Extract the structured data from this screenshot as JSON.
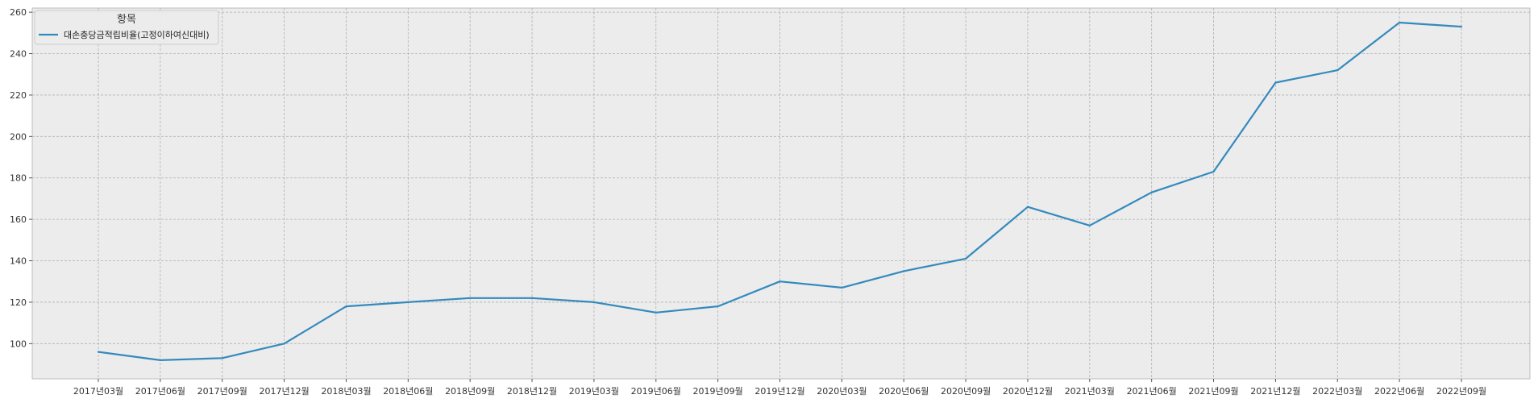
{
  "chart_data": {
    "type": "line",
    "title": "",
    "xlabel": "",
    "ylabel": "",
    "x": [
      "2017년03월",
      "2017년06월",
      "2017년09월",
      "2017년12월",
      "2018년03월",
      "2018년06월",
      "2018년09월",
      "2018년12월",
      "2019년03월",
      "2019년06월",
      "2019년09월",
      "2019년12월",
      "2020년03월",
      "2020년06월",
      "2020년09월",
      "2020년12월",
      "2021년03월",
      "2021년06월",
      "2021년09월",
      "2021년12월",
      "2022년03월",
      "2022년06월",
      "2022년09월"
    ],
    "series": [
      {
        "name": "대손충당금적립비율(고정이하여신대비)",
        "color": "#348abd",
        "values": [
          96,
          92,
          93,
          100,
          118,
          120,
          122,
          122,
          120,
          115,
          118,
          130,
          127,
          135,
          141,
          166,
          157,
          173,
          183,
          226,
          232,
          255,
          253
        ]
      }
    ],
    "ylim": [
      83,
      262
    ],
    "yticks": [
      100,
      120,
      140,
      160,
      180,
      200,
      220,
      240,
      260
    ],
    "grid": true,
    "legend": {
      "title": "항목",
      "placement": "top-left"
    },
    "colors": {
      "background": "#ececec",
      "grid": "#b0b0b0",
      "axis": "#bcbcbc"
    }
  }
}
